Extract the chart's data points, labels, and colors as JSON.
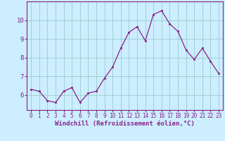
{
  "x": [
    0,
    1,
    2,
    3,
    4,
    5,
    6,
    7,
    8,
    9,
    10,
    11,
    12,
    13,
    14,
    15,
    16,
    17,
    18,
    19,
    20,
    21,
    22,
    23
  ],
  "y": [
    6.3,
    6.2,
    5.7,
    5.6,
    6.2,
    6.4,
    5.6,
    6.1,
    6.2,
    6.9,
    7.5,
    8.5,
    9.35,
    9.65,
    8.9,
    10.3,
    10.5,
    9.8,
    9.4,
    8.4,
    7.9,
    8.5,
    7.8,
    7.15
  ],
  "line_color": "#882288",
  "marker": "s",
  "markersize": 2.0,
  "linewidth": 0.9,
  "xlabel": "Windchill (Refroidissement éolien,°C)",
  "xlabel_color": "#882288",
  "xlabel_fontsize": 6.5,
  "ylabel_ticks": [
    6,
    7,
    8,
    9,
    10
  ],
  "xtick_labels": [
    "0",
    "1",
    "2",
    "3",
    "4",
    "5",
    "6",
    "7",
    "8",
    "9",
    "10",
    "11",
    "12",
    "13",
    "14",
    "15",
    "16",
    "17",
    "18",
    "19",
    "20",
    "21",
    "22",
    "23"
  ],
  "ylim": [
    5.2,
    11.0
  ],
  "xlim": [
    -0.5,
    23.5
  ],
  "bg_color": "#cceeff",
  "grid_color": "#99cccc",
  "tick_color": "#882288",
  "tick_fontsize": 5.5,
  "ytick_fontsize": 6.5
}
